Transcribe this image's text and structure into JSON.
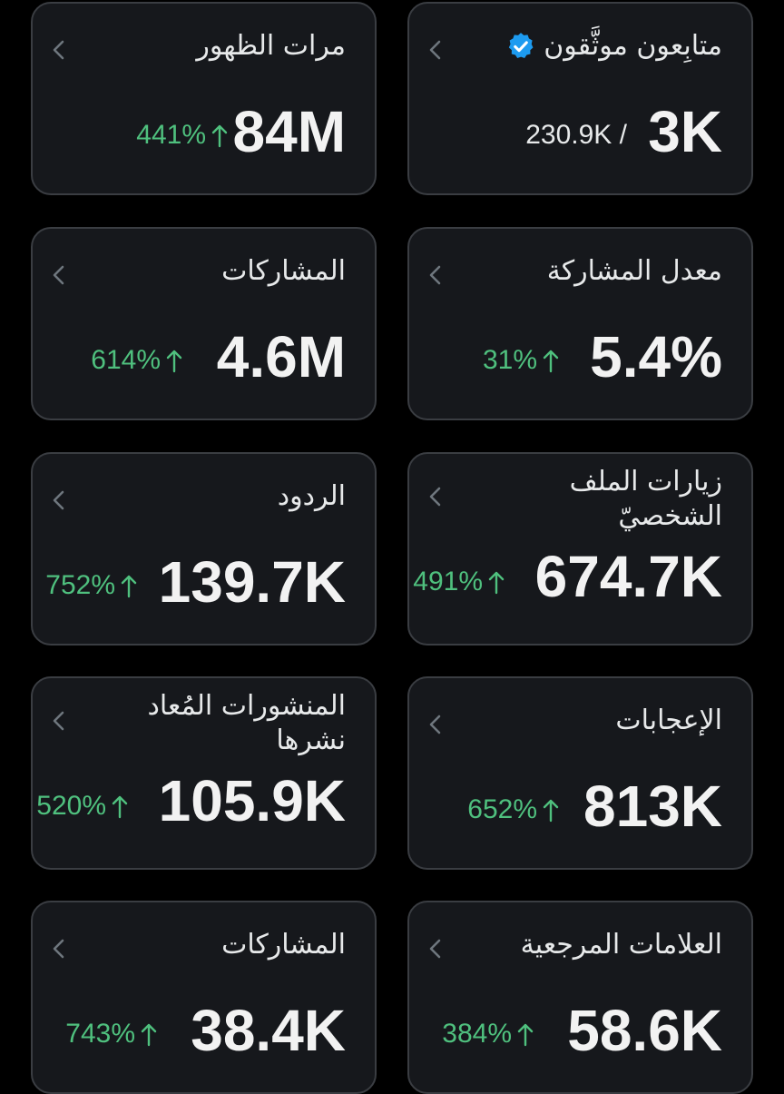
{
  "colors": {
    "background": "#000000",
    "card": "#16181c",
    "card_border": "#3a3d42",
    "positive": "#4fc07e",
    "verified": "#1d9bf0"
  },
  "cards": [
    {
      "title": "متابِعون موثَّقون",
      "value": "3K",
      "sub": "230.9K /",
      "sub_kind": "total",
      "icon": "verified-badge-icon"
    },
    {
      "title": "مرات الظهور",
      "value": "84M",
      "change": "441%",
      "direction": "up"
    },
    {
      "title": "معدل المشاركة",
      "value": "5.4%",
      "change": "31%",
      "direction": "up"
    },
    {
      "title": "المشاركات",
      "value": "4.6M",
      "change": "614%",
      "direction": "up"
    },
    {
      "title": "زيارات الملف الشخصيّ",
      "value": "674.7K",
      "change": "491%",
      "direction": "up"
    },
    {
      "title": "الردود",
      "value": "139.7K",
      "change": "752%",
      "direction": "up"
    },
    {
      "title": "الإعجابات",
      "value": "813K",
      "change": "652%",
      "direction": "up"
    },
    {
      "title": "المنشورات المُعاد نشرها",
      "value": "105.9K",
      "change": "520%",
      "direction": "up"
    },
    {
      "title": "العلامات المرجعية",
      "value": "58.6K",
      "change": "384%",
      "direction": "up"
    },
    {
      "title": "المشاركات",
      "value": "38.4K",
      "change": "743%",
      "direction": "up"
    }
  ]
}
